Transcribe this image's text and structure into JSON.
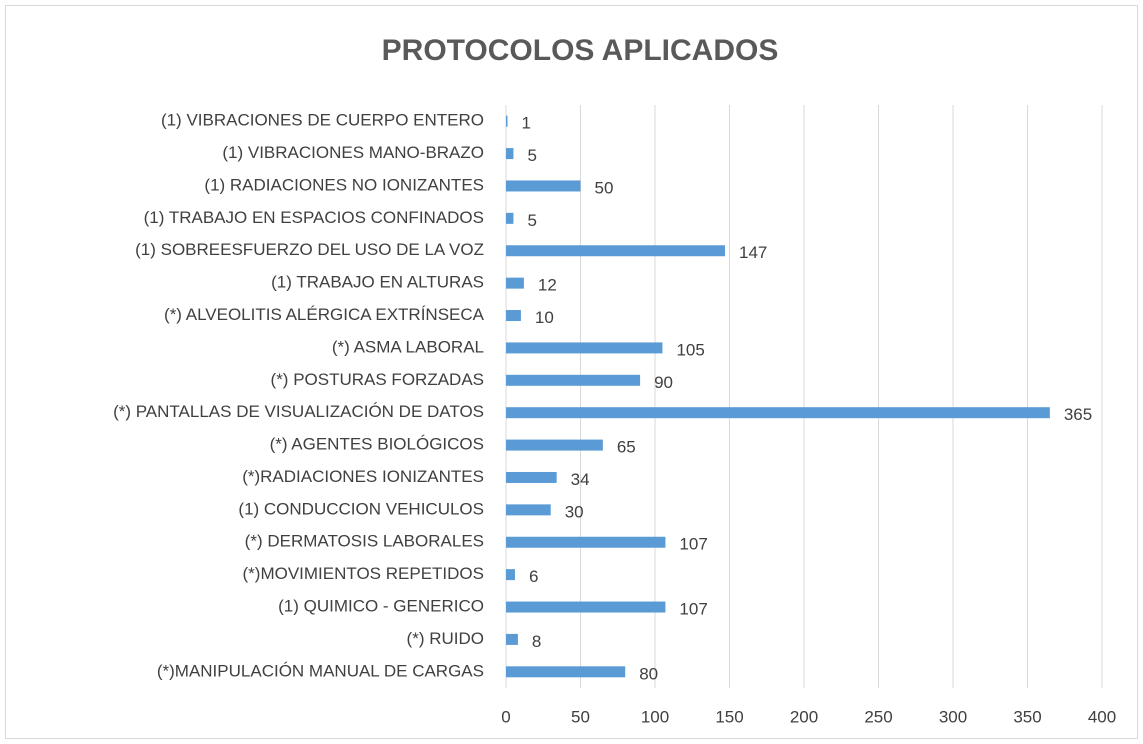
{
  "chart_data": {
    "type": "bar",
    "orientation": "horizontal",
    "title": "PROTOCOLOS APLICADOS",
    "categories": [
      "(1) VIBRACIONES DE CUERPO ENTERO",
      "(1) VIBRACIONES MANO-BRAZO",
      "(1) RADIACIONES NO IONIZANTES",
      "(1) TRABAJO EN ESPACIOS CONFINADOS",
      "(1) SOBREESFUERZO DEL USO DE LA VOZ",
      "(1) TRABAJO EN ALTURAS",
      "(*) ALVEOLITIS ALÉRGICA EXTRÍNSECA",
      "(*) ASMA LABORAL",
      "(*) POSTURAS FORZADAS",
      "(*) PANTALLAS DE VISUALIZACIÓN DE DATOS",
      "(*) AGENTES BIOLÓGICOS",
      "(*)RADIACIONES IONIZANTES",
      "(1)  CONDUCCION VEHICULOS",
      "(*) DERMATOSIS LABORALES",
      "(*)MOVIMIENTOS REPETIDOS",
      "(1)  QUIMICO - GENERICO",
      "(*) RUIDO",
      "(*)MANIPULACIÓN MANUAL DE CARGAS"
    ],
    "values": [
      1,
      5,
      50,
      5,
      147,
      12,
      10,
      105,
      90,
      365,
      65,
      34,
      30,
      107,
      6,
      107,
      8,
      80
    ],
    "color": "#5b9bd5",
    "xlim": [
      0,
      400
    ],
    "xticks": [
      0,
      50,
      100,
      150,
      200,
      250,
      300,
      350,
      400
    ],
    "grid": true
  }
}
